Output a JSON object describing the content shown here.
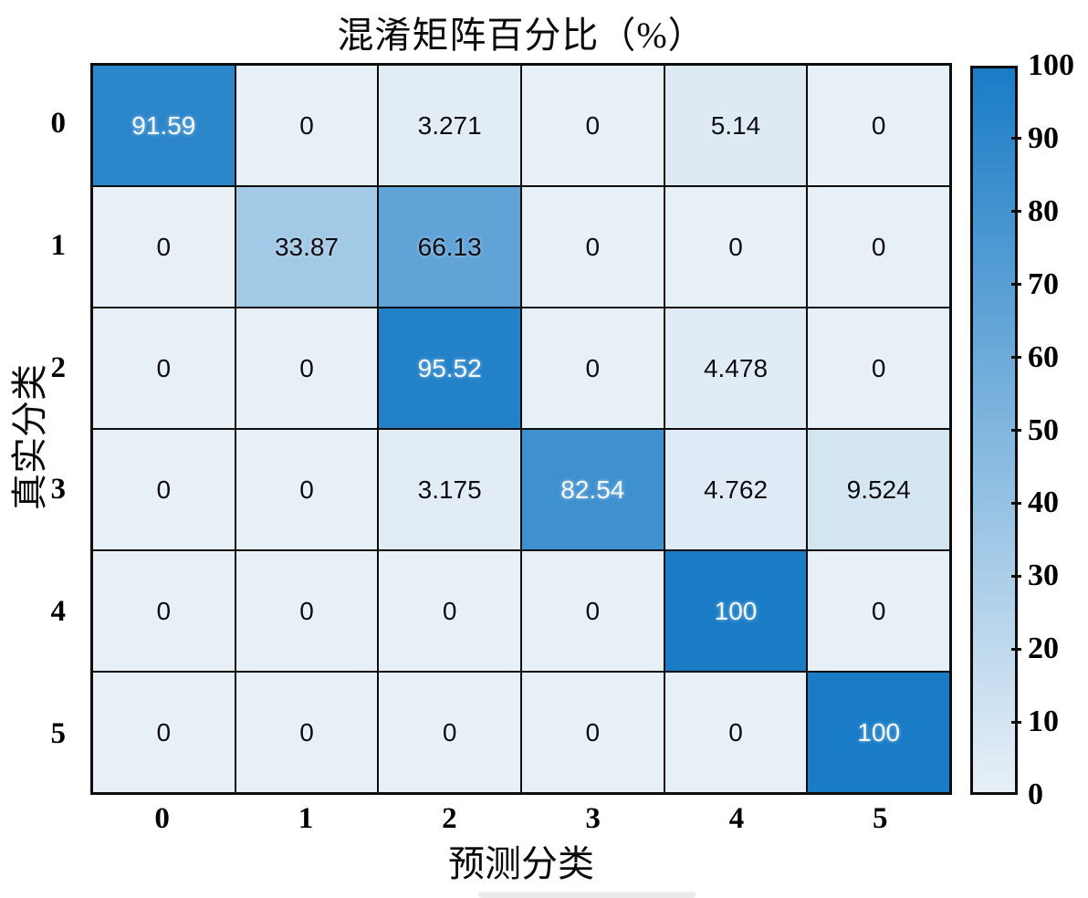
{
  "title": "混淆矩阵百分比（%）",
  "chart_data": {
    "type": "heatmap",
    "title": "混淆矩阵百分比（%）",
    "xlabel": "预测分类",
    "ylabel": "真实分类",
    "x_tick_labels": [
      "0",
      "1",
      "2",
      "3",
      "4",
      "5"
    ],
    "y_tick_labels": [
      "0",
      "1",
      "2",
      "3",
      "4",
      "5"
    ],
    "cell_labels": [
      [
        "91.59",
        "0",
        "3.271",
        "0",
        "5.14",
        "0"
      ],
      [
        "0",
        "33.87",
        "66.13",
        "0",
        "0",
        "0"
      ],
      [
        "0",
        "0",
        "95.52",
        "0",
        "4.478",
        "0"
      ],
      [
        "0",
        "0",
        "3.175",
        "82.54",
        "4.762",
        "9.524"
      ],
      [
        "0",
        "0",
        "0",
        "0",
        "100",
        "0"
      ],
      [
        "0",
        "0",
        "0",
        "0",
        "0",
        "100"
      ]
    ],
    "matrix": [
      [
        91.59,
        0,
        3.271,
        0,
        5.14,
        0
      ],
      [
        0,
        33.87,
        66.13,
        0,
        0,
        0
      ],
      [
        0,
        0,
        95.52,
        0,
        4.478,
        0
      ],
      [
        0,
        0,
        3.175,
        82.54,
        4.762,
        9.524
      ],
      [
        0,
        0,
        0,
        0,
        100,
        0
      ],
      [
        0,
        0,
        0,
        0,
        0,
        100
      ]
    ],
    "colorbar": {
      "min": 0,
      "max": 100,
      "tick_values": [
        0,
        10,
        20,
        30,
        40,
        50,
        60,
        70,
        80,
        90,
        100
      ],
      "tick_labels": [
        "0",
        "10",
        "20",
        "30",
        "40",
        "50",
        "60",
        "70",
        "80",
        "90",
        "100"
      ],
      "position": "right"
    },
    "colors": {
      "cmap_low": "#e8f0f7",
      "cmap_high": "#1a7cc6",
      "grid_line": "#0d0d0d",
      "cell_text_dark": "#0c0c14",
      "cell_text_light": "#f6fafe"
    },
    "grid": true,
    "legend": false
  }
}
